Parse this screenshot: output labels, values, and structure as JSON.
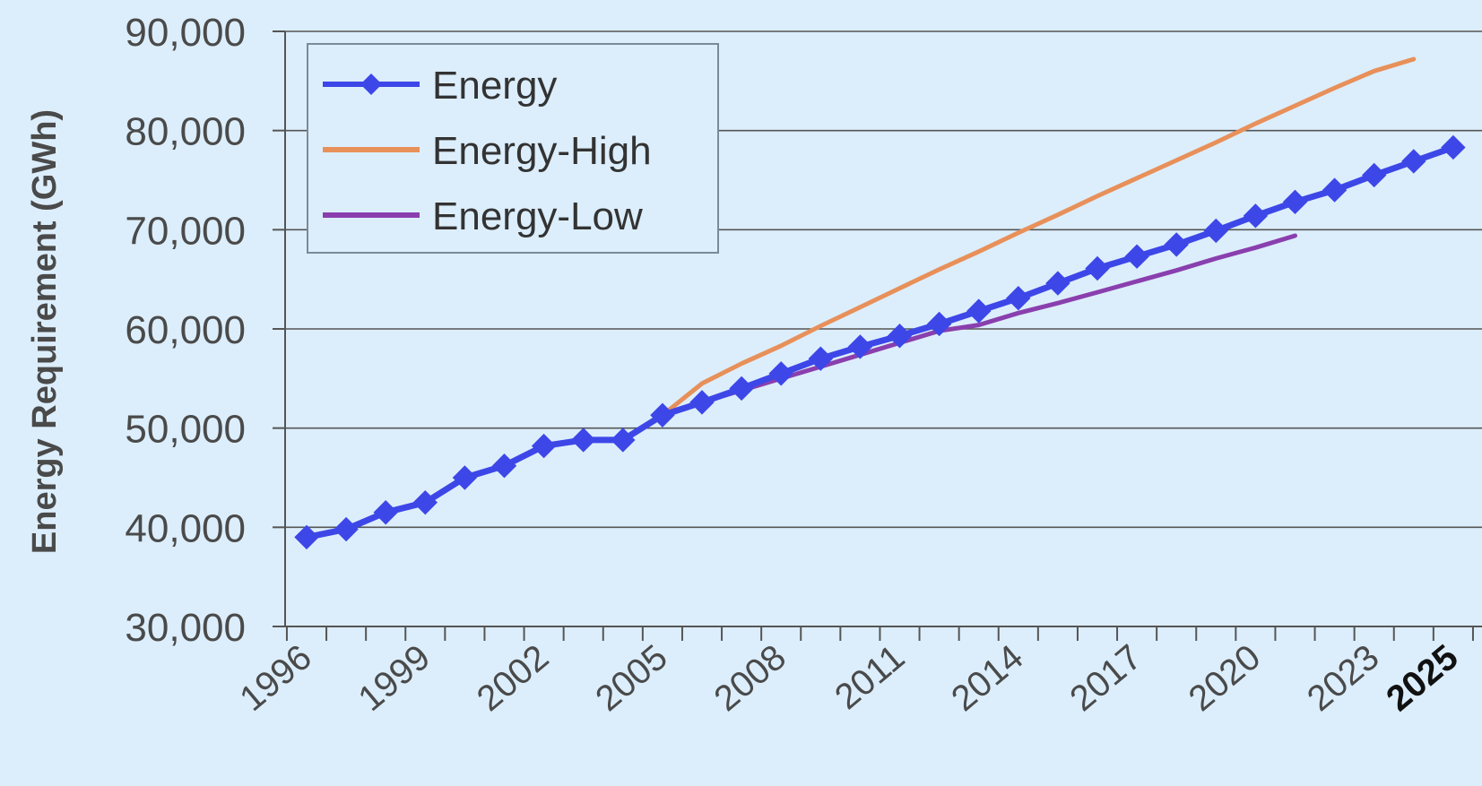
{
  "chart_data": {
    "type": "line",
    "title": "",
    "xlabel": "",
    "ylabel": "Energy Requirement (GWh)",
    "ylim": [
      30000,
      90000
    ],
    "yticks": [
      30000,
      40000,
      50000,
      60000,
      70000,
      80000,
      90000
    ],
    "ytick_labels": [
      "30,000",
      "40,000",
      "50,000",
      "60,000",
      "70,000",
      "80,000",
      "90,000"
    ],
    "xlim": [
      1996,
      2025
    ],
    "xtick_labels": [
      "1996",
      "1999",
      "2002",
      "2005",
      "2008",
      "2011",
      "2014",
      "2017",
      "2020",
      "2023",
      "2025"
    ],
    "x": [
      1996,
      1997,
      1998,
      1999,
      2000,
      2001,
      2002,
      2003,
      2004,
      2005,
      2006,
      2007,
      2008,
      2009,
      2010,
      2011,
      2012,
      2013,
      2014,
      2015,
      2016,
      2017,
      2018,
      2019,
      2020,
      2021,
      2022,
      2023,
      2024,
      2025,
      2026
    ],
    "grid": "horizontal",
    "legend_position": "top-left",
    "series": [
      {
        "name": "Energy",
        "color": "#3d47e8",
        "marker": "diamond",
        "values": [
          39000,
          39800,
          41500,
          42500,
          45000,
          46200,
          48200,
          48800,
          48800,
          51300,
          52600,
          54000,
          55500,
          57000,
          58200,
          59300,
          60500,
          61800,
          63100,
          64600,
          66100,
          67300,
          68500,
          69900,
          71400,
          72800,
          74000,
          75500,
          76900,
          78300,
          null
        ]
      },
      {
        "name": "Energy-High",
        "color": "#e8905a",
        "marker": "none",
        "values": [
          39000,
          39800,
          41500,
          42500,
          45000,
          46200,
          48200,
          48800,
          48800,
          51300,
          54500,
          56500,
          58300,
          60300,
          62200,
          64100,
          66000,
          67800,
          69700,
          71500,
          73400,
          75200,
          77000,
          78800,
          80700,
          82500,
          84300,
          86000,
          87200,
          null,
          null
        ]
      },
      {
        "name": "Energy-Low",
        "color": "#8a3fae",
        "marker": "none",
        "values": [
          39000,
          39800,
          41500,
          42500,
          45000,
          46200,
          48200,
          48800,
          48800,
          51300,
          52600,
          53800,
          55000,
          56200,
          57400,
          58600,
          59800,
          60400,
          61600,
          62600,
          63700,
          64800,
          65900,
          67100,
          68200,
          69400,
          null,
          null,
          null,
          null,
          null
        ]
      }
    ]
  }
}
